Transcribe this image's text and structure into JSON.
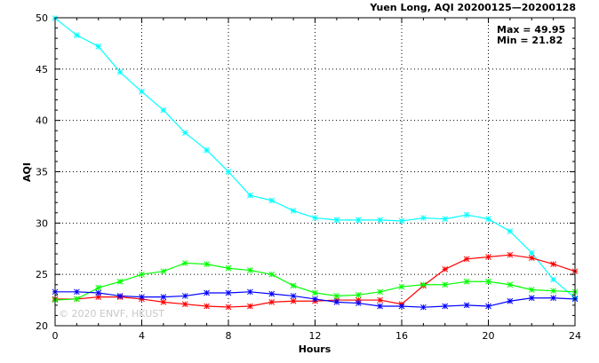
{
  "chart_data": {
    "type": "line",
    "title": "Yuen Long, AQI 20200125—20200128",
    "xlabel": "Hours",
    "ylabel": "AQI",
    "xlim": [
      0,
      24
    ],
    "ylim": [
      20,
      50
    ],
    "xticks": [
      0,
      4,
      8,
      12,
      16,
      20,
      24
    ],
    "yticks": [
      20,
      25,
      30,
      35,
      40,
      45,
      50
    ],
    "grid": true,
    "stats": {
      "max": "Max = 49.95",
      "min": "Min = 21.82"
    },
    "watermark": "© 2020 ENVF, HKUST",
    "x": [
      0,
      1,
      2,
      3,
      4,
      5,
      6,
      7,
      8,
      9,
      10,
      11,
      12,
      13,
      14,
      15,
      16,
      17,
      18,
      19,
      20,
      21,
      22,
      23,
      24
    ],
    "series": [
      {
        "color": "#00ffff",
        "values": [
          49.95,
          48.3,
          47.2,
          44.7,
          42.8,
          41.0,
          38.8,
          37.1,
          35.0,
          32.7,
          32.2,
          31.2,
          30.5,
          30.3,
          30.3,
          30.3,
          30.2,
          30.5,
          30.4,
          30.8,
          30.4,
          29.2,
          27.1,
          24.5,
          22.7
        ]
      },
      {
        "color": "#ff0000",
        "values": [
          22.6,
          22.6,
          22.8,
          22.8,
          22.6,
          22.3,
          22.1,
          21.9,
          21.82,
          21.9,
          22.3,
          22.4,
          22.4,
          22.5,
          22.5,
          22.5,
          22.1,
          23.9,
          25.5,
          26.5,
          26.7,
          26.9,
          26.6,
          26.0,
          25.3
        ]
      },
      {
        "color": "#00ff00",
        "values": [
          22.5,
          22.6,
          23.7,
          24.3,
          25.0,
          25.3,
          26.1,
          26.0,
          25.6,
          25.4,
          25.0,
          23.9,
          23.2,
          22.9,
          23.0,
          23.3,
          23.8,
          24.0,
          24.0,
          24.3,
          24.3,
          24.0,
          23.5,
          23.4,
          23.3
        ]
      },
      {
        "color": "#0000ff",
        "values": [
          23.3,
          23.3,
          23.2,
          22.9,
          22.8,
          22.8,
          22.9,
          23.2,
          23.2,
          23.3,
          23.1,
          22.9,
          22.6,
          22.3,
          22.2,
          21.9,
          21.9,
          21.8,
          21.9,
          22.0,
          21.9,
          22.4,
          22.7,
          22.7,
          22.6
        ]
      }
    ]
  }
}
